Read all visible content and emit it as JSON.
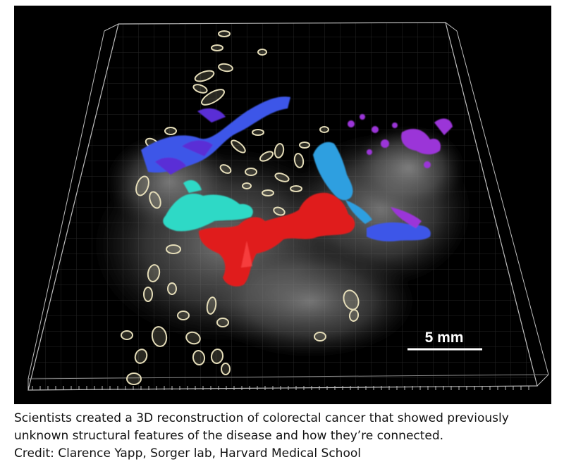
{
  "figure": {
    "scale_bar_label": "5 mm",
    "colors": {
      "background": "#000000",
      "tissue": "#8a8a8a",
      "outline_structures": "#e4dcb8",
      "blue": "#3c56e8",
      "violet": "#5a2fd6",
      "cyan": "#2fd9c6",
      "red": "#e01e1e",
      "sky_blue": "#2e9fe0",
      "purple": "#9b36d8"
    }
  },
  "caption": {
    "line1": "Scientists created a 3D reconstruction of colorectal cancer that showed previously",
    "line2": "unknown structural features of the disease and how they’re connected.",
    "line3": "Credit: Clarence Yapp, Sorger lab, Harvard Medical School"
  }
}
